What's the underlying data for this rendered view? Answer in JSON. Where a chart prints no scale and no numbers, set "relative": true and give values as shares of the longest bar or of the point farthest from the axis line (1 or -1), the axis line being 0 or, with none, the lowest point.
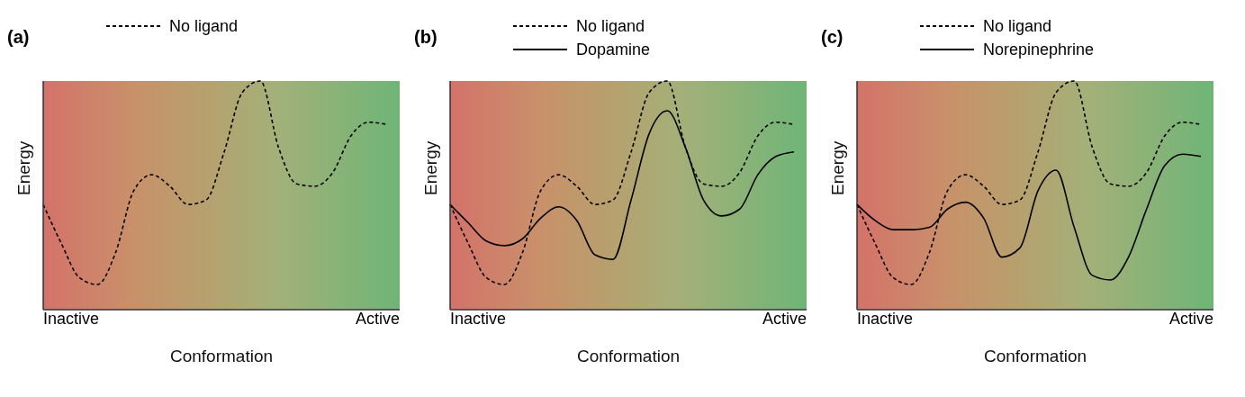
{
  "chart_data": [
    {
      "type": "line",
      "title": "(a)",
      "xlabel": "Conformation",
      "ylabel": "Energy",
      "relative": true,
      "legend": "top",
      "annotations": [
        "Inactive",
        "Active"
      ],
      "categories": [
        null,
        null,
        null,
        null,
        null,
        null,
        null,
        null,
        null,
        null,
        null,
        null,
        null,
        null,
        null,
        null,
        null,
        null,
        null,
        null
      ],
      "series": [
        {
          "name": "No ligand",
          "color": "#000000",
          "line_style": "dashed",
          "values": [
            0.46,
            0.29,
            0.14,
            0.11,
            0.25,
            0.52,
            0.59,
            0.54,
            0.46,
            0.48,
            0.69,
            0.95,
            1.0,
            0.71,
            0.55,
            0.54,
            0.6,
            0.76,
            0.82,
            0.81
          ]
        }
      ]
    },
    {
      "type": "line",
      "title": "(b)",
      "xlabel": "Conformation",
      "ylabel": "Energy",
      "relative": true,
      "legend": "top",
      "annotations": [
        "Inactive",
        "Active"
      ],
      "categories": [
        null,
        null,
        null,
        null,
        null,
        null,
        null,
        null,
        null,
        null,
        null,
        null,
        null,
        null,
        null,
        null,
        null,
        null,
        null,
        null
      ],
      "series": [
        {
          "name": "No ligand",
          "color": "#000000",
          "line_style": "dashed",
          "values": [
            0.46,
            0.29,
            0.14,
            0.11,
            0.25,
            0.52,
            0.59,
            0.54,
            0.46,
            0.48,
            0.69,
            0.95,
            1.0,
            0.71,
            0.55,
            0.54,
            0.6,
            0.76,
            0.82,
            0.81
          ]
        },
        {
          "name": "Dopamine",
          "color": "#000000",
          "line_style": "solid",
          "values": [
            0.46,
            0.38,
            0.3,
            0.28,
            0.31,
            0.4,
            0.45,
            0.39,
            0.24,
            0.22,
            0.48,
            0.77,
            0.87,
            0.71,
            0.48,
            0.41,
            0.44,
            0.59,
            0.67,
            0.69
          ]
        }
      ]
    },
    {
      "type": "line",
      "title": "(c)",
      "xlabel": "Conformation",
      "ylabel": "Energy",
      "relative": true,
      "legend": "top",
      "annotations": [
        "Inactive",
        "Active"
      ],
      "categories": [
        null,
        null,
        null,
        null,
        null,
        null,
        null,
        null,
        null,
        null,
        null,
        null,
        null,
        null,
        null,
        null,
        null,
        null,
        null,
        null
      ],
      "series": [
        {
          "name": "No ligand",
          "color": "#000000",
          "line_style": "dashed",
          "values": [
            0.46,
            0.29,
            0.14,
            0.11,
            0.25,
            0.52,
            0.59,
            0.54,
            0.46,
            0.48,
            0.69,
            0.95,
            1.0,
            0.71,
            0.55,
            0.54,
            0.6,
            0.76,
            0.82,
            0.81
          ]
        },
        {
          "name": "Norepinephrine",
          "color": "#000000",
          "line_style": "solid",
          "values": [
            0.46,
            0.39,
            0.35,
            0.35,
            0.36,
            0.44,
            0.47,
            0.4,
            0.23,
            0.27,
            0.52,
            0.61,
            0.36,
            0.15,
            0.13,
            0.23,
            0.44,
            0.63,
            0.68,
            0.67
          ]
        }
      ]
    }
  ]
}
